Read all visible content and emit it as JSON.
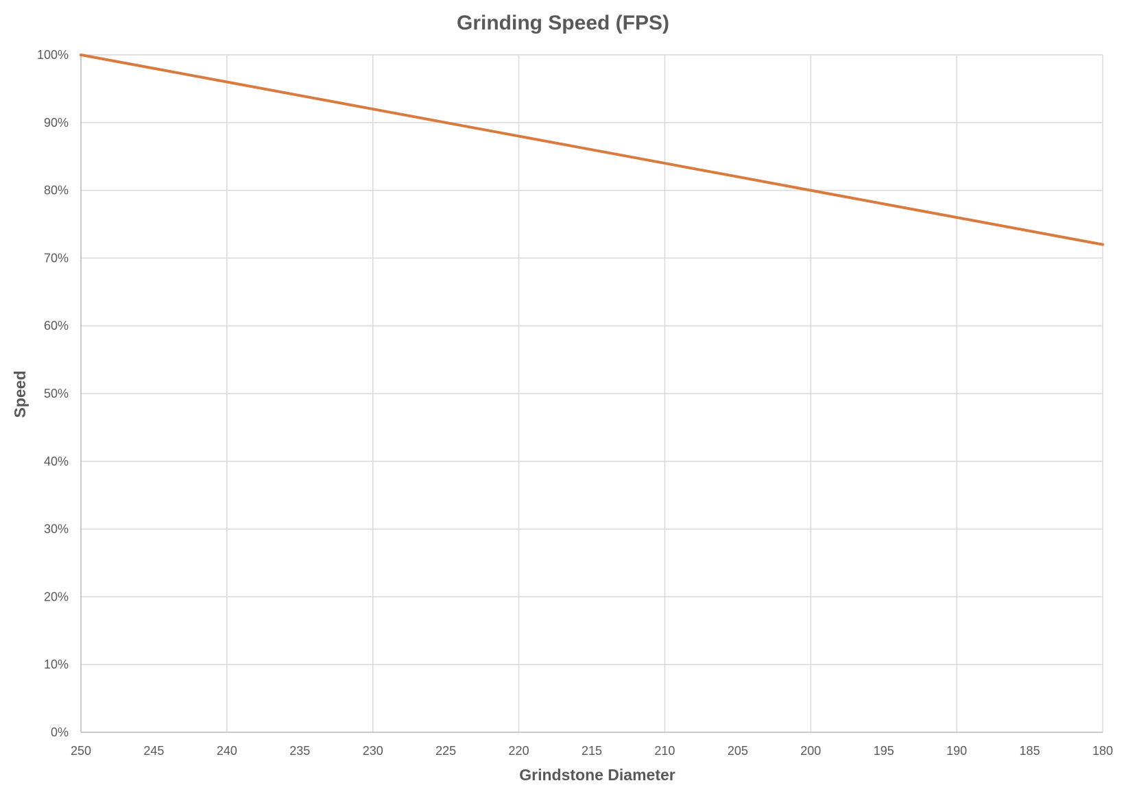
{
  "chart_data": {
    "type": "line",
    "title": "Grinding Speed (FPS)",
    "xlabel": "Grindstone Diameter",
    "ylabel": "Speed",
    "x_reversed": true,
    "xlim": [
      250,
      180
    ],
    "ylim": [
      0,
      100
    ],
    "y_tick_format": "percent",
    "x_ticks": [
      "250",
      "245",
      "240",
      "235",
      "230",
      "225",
      "220",
      "215",
      "210",
      "205",
      "200",
      "195",
      "190",
      "185",
      "180"
    ],
    "y_ticks": [
      "0%",
      "10%",
      "20%",
      "30%",
      "40%",
      "50%",
      "60%",
      "70%",
      "80%",
      "90%",
      "100%"
    ],
    "grid": true,
    "legend": "none",
    "series": [
      {
        "color": "#D97A3F",
        "x": [
          250,
          245,
          240,
          237,
          235,
          230,
          225,
          220,
          215,
          210,
          205,
          203,
          200,
          195,
          190,
          185,
          180
        ],
        "y": [
          100,
          98,
          96,
          94.8,
          94,
          92,
          90,
          88,
          86,
          84,
          82,
          81.2,
          80,
          78,
          76,
          74,
          72
        ]
      }
    ]
  }
}
